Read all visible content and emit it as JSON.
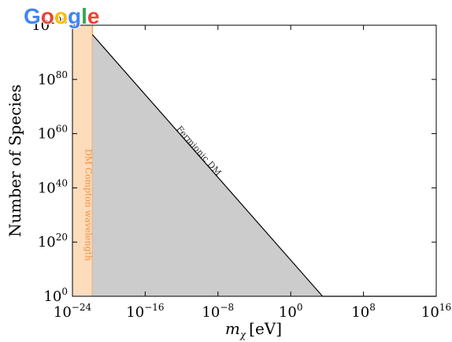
{
  "watermark": {
    "text": "Google",
    "letters": [
      "G",
      "o",
      "o",
      "g",
      "l",
      "e"
    ],
    "colors": [
      "#4285F4",
      "#EA4335",
      "#FBBC05",
      "#4285F4",
      "#34A853",
      "#EA4335"
    ]
  },
  "chart_data": {
    "type": "area",
    "title": "",
    "xlabel": "m",
    "xlabel_sub": "χ",
    "xlabel_unit": "[eV]",
    "ylabel": "Number of Species",
    "xscale": "log",
    "yscale": "log",
    "x_exponent_range": [
      -24,
      16
    ],
    "y_exponent_range": [
      0,
      100
    ],
    "x_ticks": [
      {
        "base": "10",
        "exp": "−24",
        "e": -24
      },
      {
        "base": "10",
        "exp": "−16",
        "e": -16
      },
      {
        "base": "10",
        "exp": "−8",
        "e": -8
      },
      {
        "base": "10",
        "exp": "0",
        "e": 0
      },
      {
        "base": "10",
        "exp": "8",
        "e": 8
      },
      {
        "base": "10",
        "exp": "16",
        "e": 16
      }
    ],
    "y_ticks": [
      {
        "base": "10",
        "exp": "0",
        "e": 0
      },
      {
        "base": "10",
        "exp": "20",
        "e": 20
      },
      {
        "base": "10",
        "exp": "40",
        "e": 40
      },
      {
        "base": "10",
        "exp": "60",
        "e": 60
      },
      {
        "base": "10",
        "exp": "80",
        "e": 80
      },
      {
        "base": "10",
        "exp": "100",
        "e": 100
      }
    ],
    "grid": false,
    "regions": [
      {
        "label": "DM Compton wavelength",
        "x_exponent_from": -24,
        "x_exponent_to": -21.8,
        "color": "#fddcbc",
        "edge_color": "#f5a25d",
        "label_color": "#f28f3b"
      },
      {
        "label": "Fermionic DM",
        "x_exponent_from": -21.8,
        "x_exponent_to": 3.5,
        "color": "#cccccc",
        "edge_color": "#000000",
        "label_color": "#333333"
      }
    ],
    "boundary_line": {
      "label": "Fermionic DM",
      "x_exponents": [
        -21.8,
        3.5
      ],
      "y_exponents": [
        96.5,
        0
      ]
    }
  }
}
